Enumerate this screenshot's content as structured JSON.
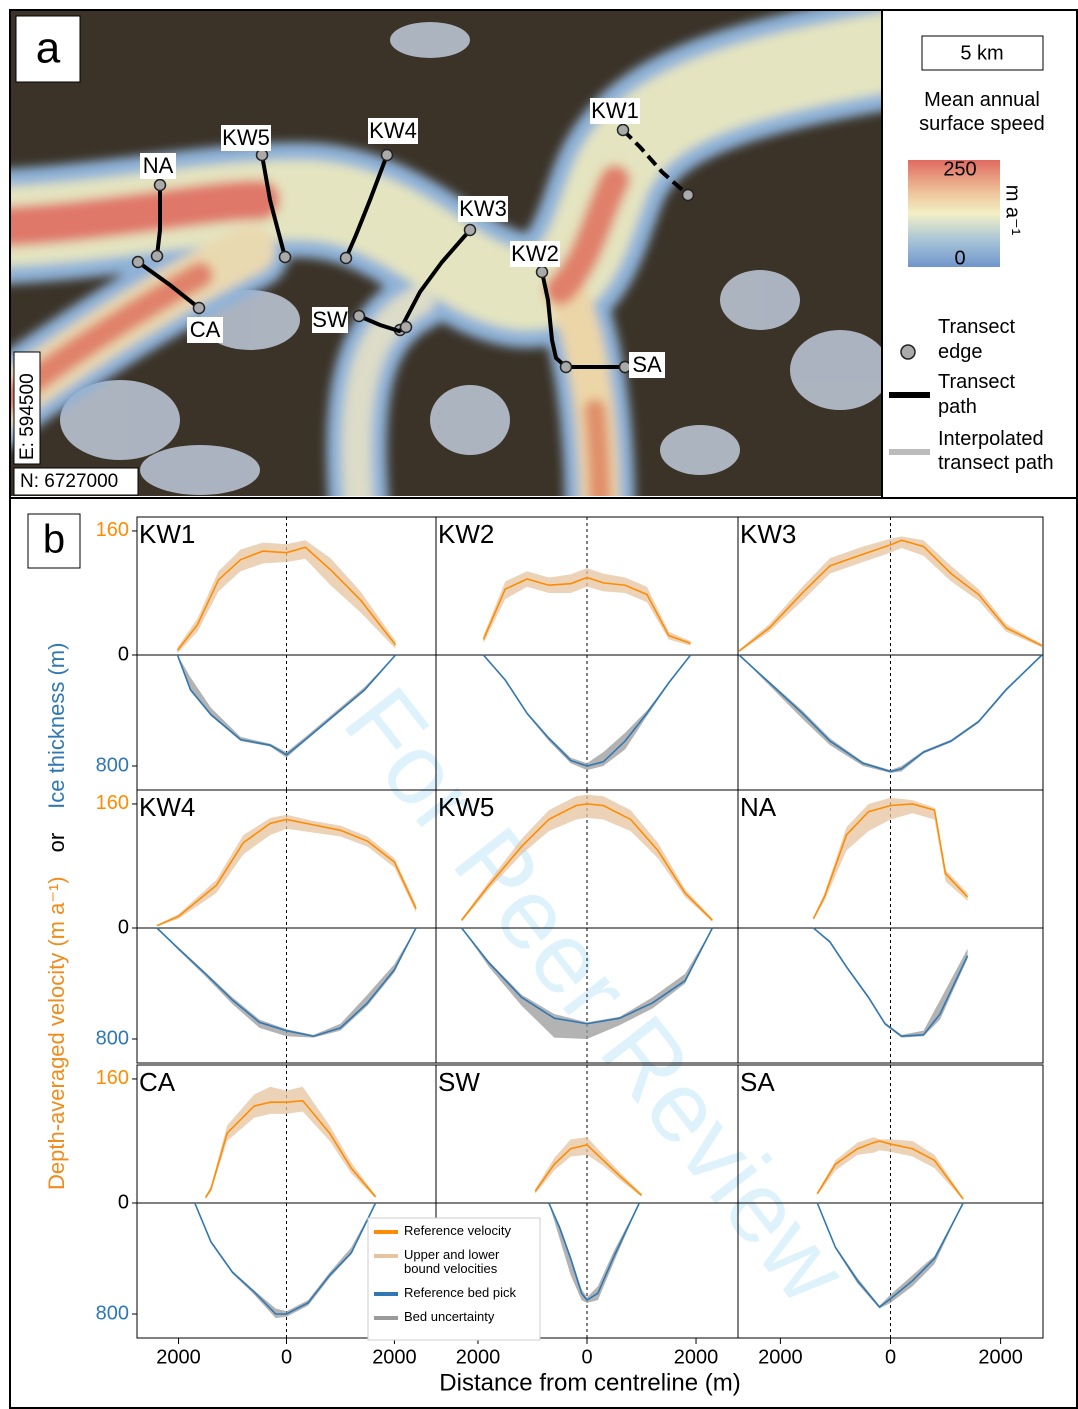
{
  "panel_a": {
    "label": "a",
    "scale_bar": "5 km",
    "colorbar_title": [
      "Mean annual",
      "surface speed"
    ],
    "colorbar_unit": "m a⁻¹",
    "colorbar_ticks": [
      0,
      250
    ],
    "easting": "E: 594500",
    "northing": "N: 6727000",
    "transects": [
      "KW1",
      "KW2",
      "KW3",
      "KW4",
      "KW5",
      "NA",
      "CA",
      "SW",
      "SA"
    ],
    "legend": [
      [
        "Transect",
        "edge"
      ],
      [
        "Transect",
        "path"
      ],
      [
        "Interpolated",
        "transect path"
      ]
    ]
  },
  "chart_data": {
    "type": "line",
    "label": "b",
    "watermark": "For Peer Review",
    "y_label_velocity": "Depth-averaged velocity (m a⁻¹)",
    "y_label_or": "or",
    "y_label_thickness": "Ice thickness (m)",
    "x_label": "Distance from centreline (m)",
    "xlim": [
      -2770,
      2770
    ],
    "xticks": [
      {
        "value": -2000,
        "label": "2000"
      },
      0,
      2000
    ],
    "ylim": [
      0,
      178
    ],
    "yticks": [
      0,
      160
    ],
    "y2lim": [
      0,
      973
    ],
    "y2ticks": [
      0,
      800
    ],
    "legend": [
      {
        "name": [
          "Reference velocity"
        ],
        "color": "#ff8c00"
      },
      {
        "name": [
          "Upper and lower",
          "bound velocities"
        ],
        "color": "#e6c4a0"
      },
      {
        "name": [
          "Reference bed pick"
        ],
        "color": "#2f78b4"
      },
      {
        "name": [
          "Bed uncertainty"
        ],
        "color": "#9a9a9a"
      }
    ],
    "panels": [
      {
        "title": "KW1",
        "velocity": {
          "x": [
            -2020,
            -1650,
            -1260,
            -850,
            -440,
            0,
            350,
            815,
            1370,
            2020
          ],
          "values": [
            6,
            39,
            97,
            123,
            134,
            132,
            139,
            110,
            71,
            13
          ],
          "low": [
            2,
            30,
            82,
            108,
            118,
            120,
            124,
            90,
            55,
            8
          ],
          "high": [
            10,
            47,
            108,
            136,
            145,
            143,
            148,
            125,
            82,
            18
          ]
        },
        "thickness": {
          "x": [
            -2020,
            -1780,
            -1400,
            -850,
            -300,
            0,
            350,
            900,
            1450,
            2020
          ],
          "values": [
            0,
            250,
            430,
            610,
            650,
            720,
            610,
            430,
            250,
            0
          ],
          "low": [
            0,
            160,
            380,
            590,
            640,
            700,
            590,
            410,
            230,
            0
          ],
          "high": [
            0,
            260,
            440,
            620,
            660,
            740,
            620,
            440,
            260,
            0
          ]
        }
      },
      {
        "title": "KW2",
        "velocity": {
          "x": [
            -1900,
            -1500,
            -1100,
            -700,
            -300,
            0,
            300,
            700,
            1100,
            1500,
            1900
          ],
          "values": [
            20,
            85,
            98,
            90,
            92,
            100,
            93,
            90,
            78,
            25,
            15
          ],
          "low": [
            15,
            72,
            88,
            80,
            80,
            88,
            82,
            80,
            68,
            20,
            12
          ],
          "high": [
            25,
            95,
            108,
            100,
            104,
            112,
            105,
            100,
            88,
            30,
            18
          ]
        },
        "thickness": {
          "x": [
            -1900,
            -1500,
            -1100,
            -700,
            -300,
            0,
            300,
            700,
            1100,
            1500,
            1900
          ],
          "values": [
            0,
            180,
            420,
            600,
            760,
            800,
            770,
            620,
            420,
            200,
            0
          ],
          "low": [
            0,
            180,
            420,
            590,
            740,
            780,
            700,
            560,
            400,
            200,
            0
          ],
          "high": [
            0,
            190,
            430,
            620,
            780,
            830,
            800,
            680,
            440,
            210,
            0
          ]
        }
      },
      {
        "title": "KW3",
        "velocity": {
          "x": [
            -2750,
            -2200,
            -1600,
            -1100,
            -500,
            0,
            200,
            600,
            1100,
            1600,
            2100,
            2750
          ],
          "values": [
            5,
            35,
            80,
            115,
            130,
            142,
            148,
            140,
            105,
            78,
            35,
            12
          ],
          "low": [
            4,
            30,
            70,
            105,
            120,
            132,
            138,
            128,
            95,
            70,
            30,
            10
          ],
          "high": [
            7,
            40,
            88,
            125,
            140,
            150,
            153,
            148,
            115,
            85,
            40,
            14
          ]
        },
        "thickness": {
          "x": [
            -2750,
            -2200,
            -1600,
            -1100,
            -500,
            0,
            200,
            600,
            1100,
            1600,
            2100,
            2750
          ],
          "values": [
            0,
            200,
            420,
            620,
            780,
            840,
            820,
            700,
            620,
            480,
            250,
            0
          ],
          "low": [
            0,
            190,
            400,
            600,
            770,
            830,
            800,
            690,
            610,
            470,
            240,
            0
          ],
          "high": [
            0,
            220,
            460,
            650,
            800,
            850,
            840,
            710,
            630,
            490,
            260,
            0
          ]
        }
      },
      {
        "title": "KW4",
        "velocity": {
          "x": [
            -2400,
            -2000,
            -1300,
            -800,
            -300,
            0,
            500,
            1000,
            1500,
            2000,
            2400
          ],
          "values": [
            3,
            15,
            55,
            110,
            135,
            140,
            133,
            126,
            112,
            85,
            25
          ],
          "low": [
            2,
            12,
            45,
            95,
            120,
            128,
            123,
            118,
            105,
            78,
            20
          ],
          "high": [
            4,
            18,
            62,
            120,
            142,
            146,
            138,
            132,
            118,
            90,
            30
          ]
        },
        "thickness": {
          "x": [
            -2400,
            -2000,
            -1500,
            -1000,
            -500,
            0,
            500,
            1000,
            1500,
            2000,
            2400
          ],
          "values": [
            0,
            150,
            330,
            520,
            680,
            740,
            780,
            720,
            540,
            300,
            0
          ],
          "low": [
            0,
            140,
            320,
            500,
            660,
            730,
            770,
            690,
            480,
            260,
            0
          ],
          "high": [
            0,
            160,
            350,
            550,
            720,
            780,
            790,
            740,
            560,
            320,
            0
          ]
        }
      },
      {
        "title": "KW5",
        "velocity": {
          "x": [
            -2300,
            -1800,
            -1200,
            -700,
            -200,
            0,
            300,
            800,
            1300,
            1800,
            2300
          ],
          "values": [
            10,
            55,
            105,
            140,
            158,
            160,
            158,
            140,
            100,
            45,
            10
          ],
          "low": [
            8,
            50,
            95,
            125,
            140,
            142,
            140,
            125,
            90,
            40,
            8
          ],
          "high": [
            12,
            60,
            115,
            152,
            170,
            172,
            170,
            152,
            110,
            50,
            12
          ]
        },
        "thickness": {
          "x": [
            -2300,
            -1800,
            -1200,
            -600,
            0,
            600,
            1200,
            1800,
            2300
          ],
          "values": [
            0,
            250,
            500,
            650,
            690,
            650,
            540,
            380,
            0
          ],
          "low": [
            0,
            240,
            480,
            620,
            680,
            640,
            500,
            330,
            0
          ],
          "high": [
            0,
            280,
            560,
            790,
            800,
            700,
            580,
            400,
            0
          ]
        }
      },
      {
        "title": "NA",
        "velocity": {
          "x": [
            -1400,
            -1200,
            -800,
            -400,
            0,
            400,
            800,
            1000,
            1400
          ],
          "values": [
            12,
            40,
            120,
            150,
            158,
            160,
            152,
            70,
            40
          ],
          "low": [
            10,
            35,
            100,
            125,
            140,
            148,
            140,
            60,
            35
          ],
          "high": [
            14,
            45,
            130,
            160,
            168,
            165,
            155,
            75,
            45
          ]
        },
        "thickness": {
          "x": [
            -1400,
            -1100,
            -800,
            -400,
            -100,
            200,
            600,
            900,
            1400
          ],
          "values": [
            0,
            100,
            280,
            500,
            690,
            780,
            770,
            620,
            200
          ],
          "low": [
            0,
            90,
            270,
            490,
            680,
            770,
            740,
            520,
            150
          ],
          "high": [
            0,
            110,
            290,
            510,
            700,
            790,
            780,
            660,
            220
          ]
        }
      },
      {
        "title": "CA",
        "velocity": {
          "x": [
            -1500,
            -1400,
            -1100,
            -600,
            -300,
            0,
            300,
            800,
            1200,
            1650
          ],
          "values": [
            7,
            18,
            90,
            125,
            130,
            130,
            132,
            90,
            45,
            8
          ],
          "low": [
            5,
            15,
            80,
            110,
            115,
            115,
            118,
            80,
            38,
            6
          ],
          "high": [
            9,
            22,
            100,
            140,
            150,
            145,
            150,
            100,
            52,
            10
          ]
        },
        "thickness": {
          "x": [
            -1700,
            -1400,
            -1000,
            -600,
            -200,
            0,
            400,
            800,
            1200,
            1650
          ],
          "values": [
            0,
            280,
            500,
            640,
            800,
            800,
            720,
            520,
            360,
            0
          ],
          "low": [
            0,
            270,
            490,
            630,
            760,
            780,
            700,
            500,
            320,
            0
          ],
          "high": [
            0,
            290,
            510,
            660,
            830,
            820,
            740,
            540,
            370,
            0
          ]
        }
      },
      {
        "title": "SW",
        "velocity": {
          "x": [
            -950,
            -600,
            -300,
            0,
            300,
            600,
            1000
          ],
          "values": [
            15,
            50,
            70,
            75,
            55,
            35,
            10
          ],
          "low": [
            12,
            42,
            60,
            62,
            48,
            30,
            8
          ],
          "high": [
            18,
            58,
            82,
            85,
            62,
            40,
            12
          ]
        },
        "thickness": {
          "x": [
            -700,
            -500,
            -300,
            -100,
            0,
            200,
            500,
            960
          ],
          "values": [
            0,
            180,
            400,
            650,
            700,
            650,
            380,
            0
          ],
          "low": [
            0,
            160,
            380,
            620,
            680,
            600,
            340,
            0
          ],
          "high": [
            0,
            260,
            520,
            700,
            720,
            700,
            420,
            0
          ]
        }
      },
      {
        "title": "SA",
        "velocity": {
          "x": [
            -1330,
            -1000,
            -600,
            -300,
            -200,
            0,
            400,
            800,
            1320
          ],
          "values": [
            12,
            50,
            70,
            78,
            80,
            76,
            70,
            55,
            5
          ],
          "low": [
            10,
            42,
            62,
            65,
            68,
            66,
            60,
            45,
            4
          ],
          "high": [
            14,
            55,
            78,
            85,
            82,
            82,
            80,
            62,
            7
          ]
        },
        "thickness": {
          "x": [
            -1330,
            -1000,
            -600,
            -200,
            0,
            400,
            800,
            1320
          ],
          "values": [
            0,
            320,
            560,
            750,
            690,
            560,
            400,
            0
          ],
          "low": [
            0,
            310,
            540,
            740,
            660,
            520,
            380,
            0
          ],
          "high": [
            0,
            330,
            580,
            760,
            720,
            600,
            440,
            0
          ]
        }
      }
    ]
  }
}
